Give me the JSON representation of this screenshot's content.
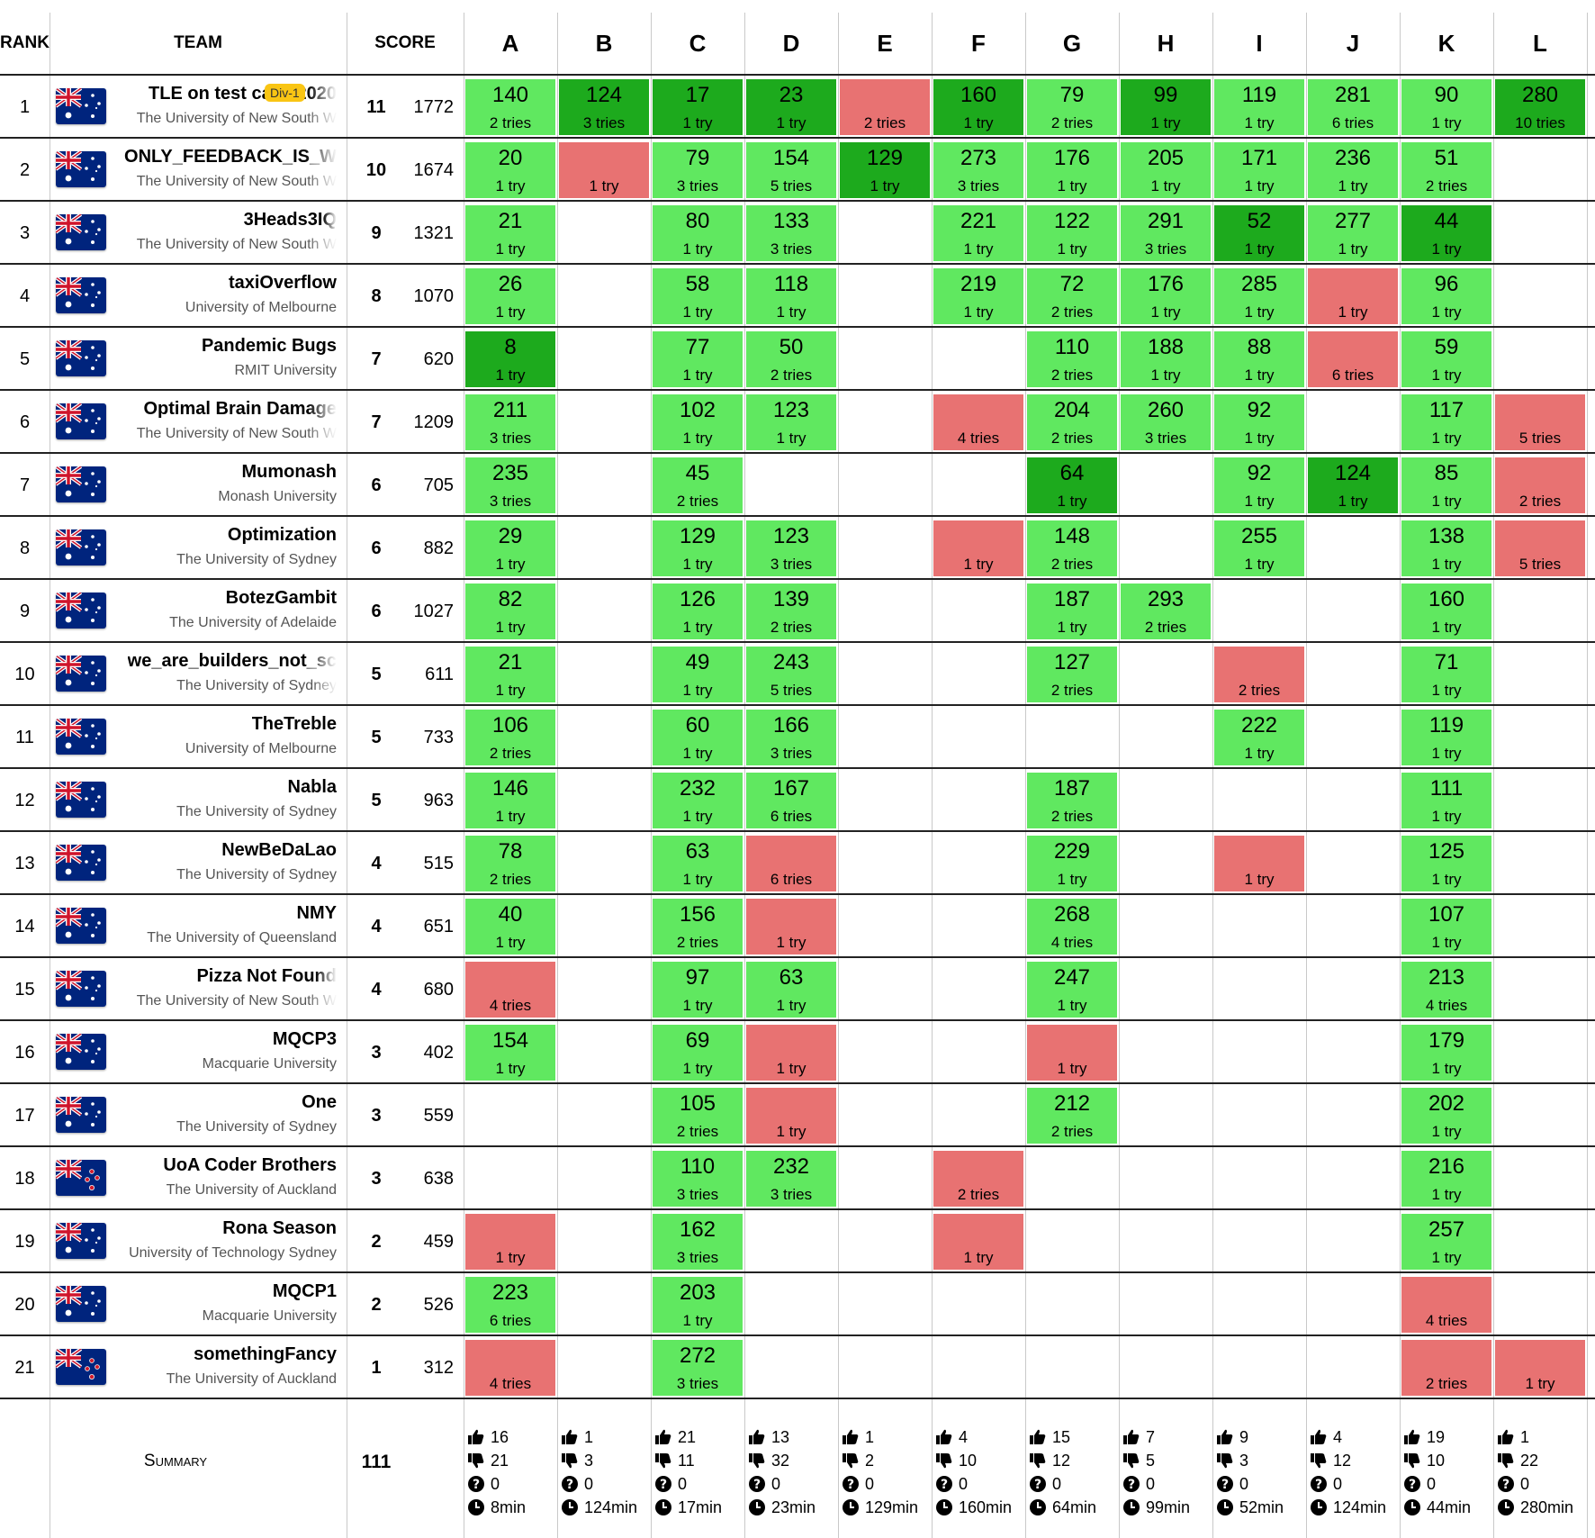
{
  "headers": {
    "rank": "RANK",
    "team": "TEAM",
    "score": "SCORE"
  },
  "problems": [
    "A",
    "B",
    "C",
    "D",
    "E",
    "F",
    "G",
    "H",
    "I",
    "J",
    "K",
    "L"
  ],
  "teams": [
    {
      "rank": "1",
      "name": "TLE on test case 2020",
      "uni": "The University of New South W",
      "fade": true,
      "badge": "Div-1",
      "solved": "11",
      "penalty": "1772",
      "cells": [
        {
          "s": "ac",
          "t": "140",
          "r": "2 tries"
        },
        {
          "s": "first",
          "t": "124",
          "r": "3 tries"
        },
        {
          "s": "first",
          "t": "17",
          "r": "1 try"
        },
        {
          "s": "first",
          "t": "23",
          "r": "1 try"
        },
        {
          "s": "rj",
          "r": "2 tries"
        },
        {
          "s": "first",
          "t": "160",
          "r": "1 try"
        },
        {
          "s": "ac",
          "t": "79",
          "r": "2 tries"
        },
        {
          "s": "first",
          "t": "99",
          "r": "1 try"
        },
        {
          "s": "ac",
          "t": "119",
          "r": "1 try"
        },
        {
          "s": "ac",
          "t": "281",
          "r": "6 tries"
        },
        {
          "s": "ac",
          "t": "90",
          "r": "1 try"
        },
        {
          "s": "first",
          "t": "280",
          "r": "10 tries"
        }
      ]
    },
    {
      "rank": "2",
      "name": "ONLY_FEEDBACK_IS_W",
      "uni": "The University of New South W",
      "fade": true,
      "solved": "10",
      "penalty": "1674",
      "cells": [
        {
          "s": "ac",
          "t": "20",
          "r": "1 try"
        },
        {
          "s": "rj",
          "r": "1 try"
        },
        {
          "s": "ac",
          "t": "79",
          "r": "3 tries"
        },
        {
          "s": "ac",
          "t": "154",
          "r": "5 tries"
        },
        {
          "s": "first",
          "t": "129",
          "r": "1 try"
        },
        {
          "s": "ac",
          "t": "273",
          "r": "3 tries"
        },
        {
          "s": "ac",
          "t": "176",
          "r": "1 try"
        },
        {
          "s": "ac",
          "t": "205",
          "r": "1 try"
        },
        {
          "s": "ac",
          "t": "171",
          "r": "1 try"
        },
        {
          "s": "ac",
          "t": "236",
          "r": "1 try"
        },
        {
          "s": "ac",
          "t": "51",
          "r": "2 tries"
        },
        null
      ]
    },
    {
      "rank": "3",
      "name": "3Heads3IQ",
      "uni": "The University of New South W",
      "fade": true,
      "solved": "9",
      "penalty": "1321",
      "cells": [
        {
          "s": "ac",
          "t": "21",
          "r": "1 try"
        },
        null,
        {
          "s": "ac",
          "t": "80",
          "r": "1 try"
        },
        {
          "s": "ac",
          "t": "133",
          "r": "3 tries"
        },
        null,
        {
          "s": "ac",
          "t": "221",
          "r": "1 try"
        },
        {
          "s": "ac",
          "t": "122",
          "r": "1 try"
        },
        {
          "s": "ac",
          "t": "291",
          "r": "3 tries"
        },
        {
          "s": "first",
          "t": "52",
          "r": "1 try"
        },
        {
          "s": "ac",
          "t": "277",
          "r": "1 try"
        },
        {
          "s": "first",
          "t": "44",
          "r": "1 try"
        },
        null
      ]
    },
    {
      "rank": "4",
      "name": "taxiOverflow",
      "uni": "University of Melbourne",
      "solved": "8",
      "penalty": "1070",
      "cells": [
        {
          "s": "ac",
          "t": "26",
          "r": "1 try"
        },
        null,
        {
          "s": "ac",
          "t": "58",
          "r": "1 try"
        },
        {
          "s": "ac",
          "t": "118",
          "r": "1 try"
        },
        null,
        {
          "s": "ac",
          "t": "219",
          "r": "1 try"
        },
        {
          "s": "ac",
          "t": "72",
          "r": "2 tries"
        },
        {
          "s": "ac",
          "t": "176",
          "r": "1 try"
        },
        {
          "s": "ac",
          "t": "285",
          "r": "1 try"
        },
        {
          "s": "rj",
          "r": "1 try"
        },
        {
          "s": "ac",
          "t": "96",
          "r": "1 try"
        },
        null
      ]
    },
    {
      "rank": "5",
      "name": "Pandemic Bugs",
      "uni": "RMIT University",
      "solved": "7",
      "penalty": "620",
      "cells": [
        {
          "s": "first",
          "t": "8",
          "r": "1 try"
        },
        null,
        {
          "s": "ac",
          "t": "77",
          "r": "1 try"
        },
        {
          "s": "ac",
          "t": "50",
          "r": "2 tries"
        },
        null,
        null,
        {
          "s": "ac",
          "t": "110",
          "r": "2 tries"
        },
        {
          "s": "ac",
          "t": "188",
          "r": "1 try"
        },
        {
          "s": "ac",
          "t": "88",
          "r": "1 try"
        },
        {
          "s": "rj",
          "r": "6 tries"
        },
        {
          "s": "ac",
          "t": "59",
          "r": "1 try"
        },
        null
      ]
    },
    {
      "rank": "6",
      "name": "Optimal Brain Damage",
      "uni": "The University of New South W",
      "fade": true,
      "solved": "7",
      "penalty": "1209",
      "cells": [
        {
          "s": "ac",
          "t": "211",
          "r": "3 tries"
        },
        null,
        {
          "s": "ac",
          "t": "102",
          "r": "1 try"
        },
        {
          "s": "ac",
          "t": "123",
          "r": "1 try"
        },
        null,
        {
          "s": "rj",
          "r": "4 tries"
        },
        {
          "s": "ac",
          "t": "204",
          "r": "2 tries"
        },
        {
          "s": "ac",
          "t": "260",
          "r": "3 tries"
        },
        {
          "s": "ac",
          "t": "92",
          "r": "1 try"
        },
        null,
        {
          "s": "ac",
          "t": "117",
          "r": "1 try"
        },
        {
          "s": "rj",
          "r": "5 tries"
        }
      ]
    },
    {
      "rank": "7",
      "name": "Mumonash",
      "uni": "Monash University",
      "solved": "6",
      "penalty": "705",
      "cells": [
        {
          "s": "ac",
          "t": "235",
          "r": "3 tries"
        },
        null,
        {
          "s": "ac",
          "t": "45",
          "r": "2 tries"
        },
        null,
        null,
        null,
        {
          "s": "first",
          "t": "64",
          "r": "1 try"
        },
        null,
        {
          "s": "ac",
          "t": "92",
          "r": "1 try"
        },
        {
          "s": "first",
          "t": "124",
          "r": "1 try"
        },
        {
          "s": "ac",
          "t": "85",
          "r": "1 try"
        },
        {
          "s": "rj",
          "r": "2 tries"
        }
      ]
    },
    {
      "rank": "8",
      "name": "Optimization",
      "uni": "The University of Sydney",
      "solved": "6",
      "penalty": "882",
      "cells": [
        {
          "s": "ac",
          "t": "29",
          "r": "1 try"
        },
        null,
        {
          "s": "ac",
          "t": "129",
          "r": "1 try"
        },
        {
          "s": "ac",
          "t": "123",
          "r": "3 tries"
        },
        null,
        {
          "s": "rj",
          "r": "1 try"
        },
        {
          "s": "ac",
          "t": "148",
          "r": "2 tries"
        },
        null,
        {
          "s": "ac",
          "t": "255",
          "r": "1 try"
        },
        null,
        {
          "s": "ac",
          "t": "138",
          "r": "1 try"
        },
        {
          "s": "rj",
          "r": "5 tries"
        }
      ]
    },
    {
      "rank": "9",
      "name": "BotezGambit",
      "uni": "The University of Adelaide",
      "solved": "6",
      "penalty": "1027",
      "cells": [
        {
          "s": "ac",
          "t": "82",
          "r": "1 try"
        },
        null,
        {
          "s": "ac",
          "t": "126",
          "r": "1 try"
        },
        {
          "s": "ac",
          "t": "139",
          "r": "2 tries"
        },
        null,
        null,
        {
          "s": "ac",
          "t": "187",
          "r": "1 try"
        },
        {
          "s": "ac",
          "t": "293",
          "r": "2 tries"
        },
        null,
        null,
        {
          "s": "ac",
          "t": "160",
          "r": "1 try"
        },
        null
      ]
    },
    {
      "rank": "10",
      "name": "we_are_builders_not_sc",
      "uni": "The University of Sydney",
      "fade": true,
      "solved": "5",
      "penalty": "611",
      "cells": [
        {
          "s": "ac",
          "t": "21",
          "r": "1 try"
        },
        null,
        {
          "s": "ac",
          "t": "49",
          "r": "1 try"
        },
        {
          "s": "ac",
          "t": "243",
          "r": "5 tries"
        },
        null,
        null,
        {
          "s": "ac",
          "t": "127",
          "r": "2 tries"
        },
        null,
        {
          "s": "rj",
          "r": "2 tries"
        },
        null,
        {
          "s": "ac",
          "t": "71",
          "r": "1 try"
        },
        null
      ]
    },
    {
      "rank": "11",
      "name": "TheTreble",
      "uni": "University of Melbourne",
      "solved": "5",
      "penalty": "733",
      "cells": [
        {
          "s": "ac",
          "t": "106",
          "r": "2 tries"
        },
        null,
        {
          "s": "ac",
          "t": "60",
          "r": "1 try"
        },
        {
          "s": "ac",
          "t": "166",
          "r": "3 tries"
        },
        null,
        null,
        null,
        null,
        {
          "s": "ac",
          "t": "222",
          "r": "1 try"
        },
        null,
        {
          "s": "ac",
          "t": "119",
          "r": "1 try"
        },
        null
      ]
    },
    {
      "rank": "12",
      "name": "Nabla",
      "uni": "The University of Sydney",
      "solved": "5",
      "penalty": "963",
      "cells": [
        {
          "s": "ac",
          "t": "146",
          "r": "1 try"
        },
        null,
        {
          "s": "ac",
          "t": "232",
          "r": "1 try"
        },
        {
          "s": "ac",
          "t": "167",
          "r": "6 tries"
        },
        null,
        null,
        {
          "s": "ac",
          "t": "187",
          "r": "2 tries"
        },
        null,
        null,
        null,
        {
          "s": "ac",
          "t": "111",
          "r": "1 try"
        },
        null
      ]
    },
    {
      "rank": "13",
      "name": "NewBeDaLao",
      "uni": "The University of Sydney",
      "solved": "4",
      "penalty": "515",
      "cells": [
        {
          "s": "ac",
          "t": "78",
          "r": "2 tries"
        },
        null,
        {
          "s": "ac",
          "t": "63",
          "r": "1 try"
        },
        {
          "s": "rj",
          "r": "6 tries"
        },
        null,
        null,
        {
          "s": "ac",
          "t": "229",
          "r": "1 try"
        },
        null,
        {
          "s": "rj",
          "r": "1 try"
        },
        null,
        {
          "s": "ac",
          "t": "125",
          "r": "1 try"
        },
        null
      ]
    },
    {
      "rank": "14",
      "name": "NMY",
      "uni": "The University of Queensland",
      "solved": "4",
      "penalty": "651",
      "cells": [
        {
          "s": "ac",
          "t": "40",
          "r": "1 try"
        },
        null,
        {
          "s": "ac",
          "t": "156",
          "r": "2 tries"
        },
        {
          "s": "rj",
          "r": "1 try"
        },
        null,
        null,
        {
          "s": "ac",
          "t": "268",
          "r": "4 tries"
        },
        null,
        null,
        null,
        {
          "s": "ac",
          "t": "107",
          "r": "1 try"
        },
        null
      ]
    },
    {
      "rank": "15",
      "name": "Pizza Not Found",
      "uni": "The University of New South W",
      "fade": true,
      "solved": "4",
      "penalty": "680",
      "cells": [
        {
          "s": "rj",
          "r": "4 tries"
        },
        null,
        {
          "s": "ac",
          "t": "97",
          "r": "1 try"
        },
        {
          "s": "ac",
          "t": "63",
          "r": "1 try"
        },
        null,
        null,
        {
          "s": "ac",
          "t": "247",
          "r": "1 try"
        },
        null,
        null,
        null,
        {
          "s": "ac",
          "t": "213",
          "r": "4 tries"
        },
        null
      ]
    },
    {
      "rank": "16",
      "name": "MQCP3",
      "uni": "Macquarie University",
      "solved": "3",
      "penalty": "402",
      "cells": [
        {
          "s": "ac",
          "t": "154",
          "r": "1 try"
        },
        null,
        {
          "s": "ac",
          "t": "69",
          "r": "1 try"
        },
        {
          "s": "rj",
          "r": "1 try"
        },
        null,
        null,
        {
          "s": "rj",
          "r": "1 try"
        },
        null,
        null,
        null,
        {
          "s": "ac",
          "t": "179",
          "r": "1 try"
        },
        null
      ]
    },
    {
      "rank": "17",
      "name": "One",
      "uni": "The University of Sydney",
      "solved": "3",
      "penalty": "559",
      "cells": [
        null,
        null,
        {
          "s": "ac",
          "t": "105",
          "r": "2 tries"
        },
        {
          "s": "rj",
          "r": "1 try"
        },
        null,
        null,
        {
          "s": "ac",
          "t": "212",
          "r": "2 tries"
        },
        null,
        null,
        null,
        {
          "s": "ac",
          "t": "202",
          "r": "1 try"
        },
        null
      ]
    },
    {
      "rank": "18",
      "name": "UoA Coder Brothers",
      "uni": "The University of Auckland",
      "flag": "nz",
      "solved": "3",
      "penalty": "638",
      "cells": [
        null,
        null,
        {
          "s": "ac",
          "t": "110",
          "r": "3 tries"
        },
        {
          "s": "ac",
          "t": "232",
          "r": "3 tries"
        },
        null,
        {
          "s": "rj",
          "r": "2 tries"
        },
        null,
        null,
        null,
        null,
        {
          "s": "ac",
          "t": "216",
          "r": "1 try"
        },
        null
      ]
    },
    {
      "rank": "19",
      "name": "Rona Season",
      "uni": "University of Technology Sydney",
      "solved": "2",
      "penalty": "459",
      "cells": [
        {
          "s": "rj",
          "r": "1 try"
        },
        null,
        {
          "s": "ac",
          "t": "162",
          "r": "3 tries"
        },
        null,
        null,
        {
          "s": "rj",
          "r": "1 try"
        },
        null,
        null,
        null,
        null,
        {
          "s": "ac",
          "t": "257",
          "r": "1 try"
        },
        null
      ]
    },
    {
      "rank": "20",
      "name": "MQCP1",
      "uni": "Macquarie University",
      "solved": "2",
      "penalty": "526",
      "cells": [
        {
          "s": "ac",
          "t": "223",
          "r": "6 tries"
        },
        null,
        {
          "s": "ac",
          "t": "203",
          "r": "1 try"
        },
        null,
        null,
        null,
        null,
        null,
        null,
        null,
        {
          "s": "rj",
          "r": "4 tries"
        },
        null
      ]
    },
    {
      "rank": "21",
      "name": "somethingFancy",
      "uni": "The University of Auckland",
      "flag": "nz",
      "solved": "1",
      "penalty": "312",
      "cells": [
        {
          "s": "rj",
          "r": "4 tries"
        },
        null,
        {
          "s": "ac",
          "t": "272",
          "r": "3 tries"
        },
        null,
        null,
        null,
        null,
        null,
        null,
        null,
        {
          "s": "rj",
          "r": "2 tries"
        },
        {
          "s": "rj",
          "r": "1 try"
        }
      ]
    }
  ],
  "summary": {
    "label": "Summary",
    "total": "111",
    "columns": [
      {
        "ac": "16",
        "wa": "21",
        "pending": "0",
        "first": "8min"
      },
      {
        "ac": "1",
        "wa": "3",
        "pending": "0",
        "first": "124min"
      },
      {
        "ac": "21",
        "wa": "11",
        "pending": "0",
        "first": "17min"
      },
      {
        "ac": "13",
        "wa": "32",
        "pending": "0",
        "first": "23min"
      },
      {
        "ac": "1",
        "wa": "2",
        "pending": "0",
        "first": "129min"
      },
      {
        "ac": "4",
        "wa": "10",
        "pending": "0",
        "first": "160min"
      },
      {
        "ac": "15",
        "wa": "12",
        "pending": "0",
        "first": "64min"
      },
      {
        "ac": "7",
        "wa": "5",
        "pending": "0",
        "first": "99min"
      },
      {
        "ac": "9",
        "wa": "3",
        "pending": "0",
        "first": "52min"
      },
      {
        "ac": "4",
        "wa": "12",
        "pending": "0",
        "first": "124min"
      },
      {
        "ac": "19",
        "wa": "10",
        "pending": "0",
        "first": "44min"
      },
      {
        "ac": "1",
        "wa": "22",
        "pending": "0",
        "first": "280min"
      }
    ]
  },
  "colors": {
    "accepted": "#60e860",
    "first_solve": "#1daa1d",
    "rejected": "#e87272",
    "badge": "#f9c514"
  },
  "icons": {
    "accepted": "thumbs-up-icon",
    "rejected": "thumbs-down-icon",
    "pending": "question-icon",
    "first_solve_time": "clock-icon",
    "flag_au": "australia-flag-icon",
    "flag_nz": "new-zealand-flag-icon"
  }
}
